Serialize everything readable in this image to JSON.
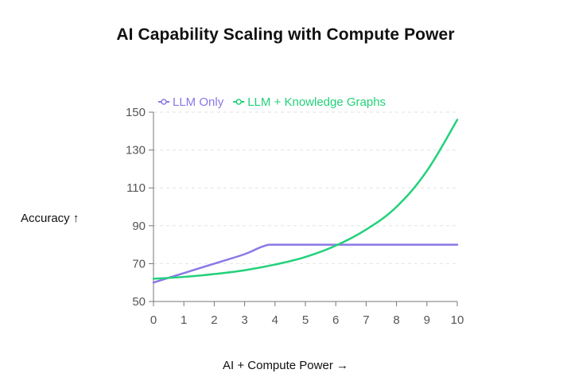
{
  "chart_data": {
    "type": "line",
    "title": "AI Capability Scaling with Compute Power",
    "xlabel": "AI + Compute Power →",
    "ylabel": "Accuracy ↑",
    "xlim": [
      0,
      10
    ],
    "ylim": [
      50,
      150
    ],
    "x_ticks": [
      "0",
      "1",
      "2",
      "3",
      "4",
      "5",
      "6",
      "7",
      "8",
      "9",
      "10"
    ],
    "y_ticks": [
      "50",
      "70",
      "90",
      "110",
      "130",
      "150"
    ],
    "grid": "horizontal dashed",
    "legend_position": "top-left",
    "series": [
      {
        "name": "LLM Only",
        "color": "#8a78e6",
        "x": [
          0,
          1,
          2,
          3,
          3.5,
          3.8,
          4,
          5,
          6,
          7,
          8,
          9,
          10
        ],
        "y": [
          60,
          65,
          70,
          75,
          78.5,
          80,
          80,
          80,
          80,
          80,
          80,
          80,
          80
        ]
      },
      {
        "name": "LLM + Knowledge Graphs",
        "color": "#22d17a",
        "x": [
          0,
          1,
          2,
          3,
          4,
          5,
          6,
          7,
          8,
          9,
          10
        ],
        "y": [
          62,
          63,
          64.5,
          66.5,
          69.5,
          73.5,
          79.5,
          88,
          100,
          119,
          146
        ]
      }
    ]
  }
}
